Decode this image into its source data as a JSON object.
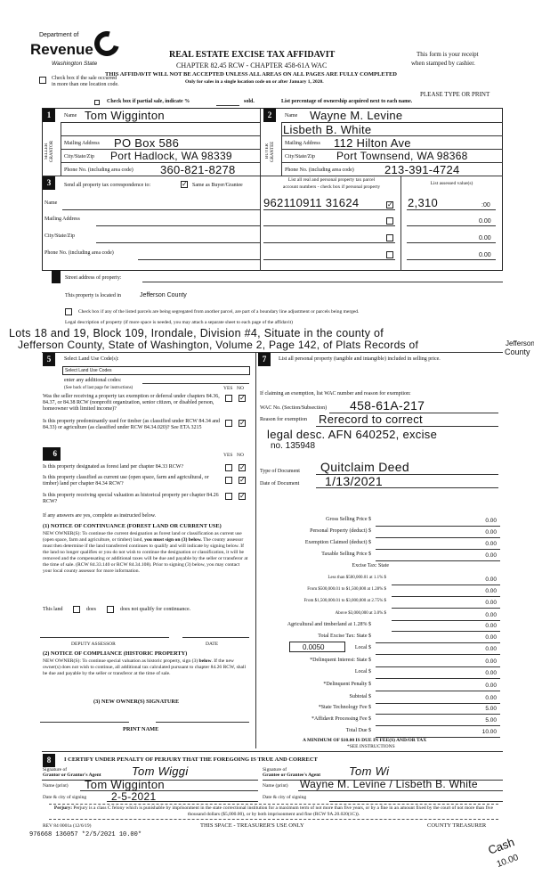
{
  "header": {
    "logo_top": "Department of",
    "logo_main": "Revenue",
    "logo_sub": "Washington State",
    "title": "REAL ESTATE EXCISE TAX AFFIDAVIT",
    "chapter": "CHAPTER 82.45 RCW - CHAPTER 458-61A WAC",
    "warning": "THIS AFFIDAVIT WILL NOT BE ACCEPTED UNLESS ALL AREAS ON ALL PAGES ARE FULLY COMPLETED",
    "only_for": "Only for sales in a single location code on or after January 1, 2020.",
    "receipt1": "This form is your receipt",
    "receipt2": "when stamped by cashier.",
    "multi_loc1": "Check box if the sale occurred",
    "multi_loc2": "in more than one location code.",
    "please_type": "PLEASE TYPE OR PRINT",
    "partial": "Check box if partial sale, indicate %",
    "partial_sold": "sold.",
    "list_pct": "List percentage of ownership acquired next to each name."
  },
  "seller": {
    "num": "1",
    "side": "SELLER GRANTOR",
    "name_label": "Name",
    "name": "Tom Wigginton",
    "mail_label": "Mailing Address",
    "mail": "PO Box 586",
    "city_label": "City/State/Zip",
    "city": "Port Hadlock, WA 98339",
    "phone_label": "Phone No. (including area code)",
    "phone": "360-821-8278"
  },
  "buyer": {
    "num": "2",
    "side": "BUYER GRANTEE",
    "name_label": "Name",
    "name": "Wayne M. Levine",
    "name2": "Lisbeth B. White",
    "mail_label": "Mailing Address",
    "mail": "112 Hilton Ave",
    "city_label": "City/State/Zip",
    "city": "Port Townsend, WA 98368",
    "phone_label": "Phone No. (including area code)",
    "phone": "213-391-4724"
  },
  "sec3": {
    "num": "3",
    "send": "Send all property tax correspondence to:",
    "same": "Same as Buyer/Grantee",
    "same_checked": true,
    "name": "Name",
    "mail": "Mailing Address",
    "city": "City/State/Zip",
    "phone": "Phone No. (including area code)",
    "parcel_hdr1": "List all real and personal property tax parcel",
    "parcel_hdr2": "account numbers - check box if personal property",
    "assessed_hdr": "List assessed value(s)",
    "parcels": [
      {
        "num": "962110911 31624",
        "checked": true,
        "value": "2,310",
        "cents": ":00"
      },
      {
        "num": "",
        "checked": false,
        "value": "0.00"
      },
      {
        "num": "",
        "checked": false,
        "value": "0.00"
      },
      {
        "num": "",
        "checked": false,
        "value": "0.00"
      }
    ]
  },
  "sec4": {
    "street": "Street address of property:",
    "located": "This property is located in",
    "county": "Jefferson County",
    "segregate": "Check box if any of the listed parcels are being segregated from another parcel, are part of a boundary line adjustment or parcels being merged.",
    "legal_label": "Legal description of property (if more space is needed, you may attach a separate sheet to each page of the affidavit)",
    "legal1": "Lots 18 and 19, Block 109, Irondale, Division #4, Situate in the county of",
    "legal2": "Jefferson County, State of Washington, Volume 2, Page 142, of Plats Records of",
    "legal3a": "Jefferson",
    "legal3b": "County"
  },
  "sec5": {
    "num": "5",
    "label": "Select Land Use Code(s):",
    "select": "Select Land Use Codes",
    "additional": "enter any additional codes:",
    "see_back": "(See back of last page for instructions)",
    "yes": "YES",
    "no": "NO",
    "q1": "Was the seller receiving a property tax exemption or deferral under chapters 84.36, 84.37, or 84.38 RCW (nonprofit organization, senior citizen, or disabled person, homeowner with limited income)?",
    "q2": "Is this property predominantly used for timber (as classified under RCW 84.34 and 84.33) or agriculture (as classified under RCW 84.34.020)? See ETA 3215"
  },
  "sec6": {
    "num": "6",
    "q3": "Is this property designated as forest land per chapter 84.33 RCW?",
    "q4": "Is this property classified as current use (open space, farm and agricultural, or timber) land per chapter 84.34 RCW?",
    "q5": "Is this property receiving special valuation as historical property per chapter 84.26 RCW?",
    "if_yes": "If any answers are yes, complete as instructed below.",
    "n1_title": "(1) NOTICE OF CONTINUANCE (FOREST LAND OR CURRENT USE)",
    "n1_a": "NEW OWNER(S): To continue the current designation as forest land or classification as current use (open space, farm and agriculture, or timber) land, ",
    "n1_bold": "you must sign on (3) below.",
    "n1_b": " The county assessor must then determine if the land transferred continues to qualify and will indicate by signing below. If the land no longer qualifies or you do not wish to continue the designation or classification, it will be removed and the compensating or additional taxes will be due and payable by the seller or transferor at the time of sale. (RCW 84.33.140 or RCW 84.34.108). Prior to signing (3) below, you may contact your local county assessor for more information.",
    "this_land": "This land",
    "does": "does",
    "does_not": "does not qualify for continuance.",
    "deputy": "DEPUTY ASSESSOR",
    "date": "DATE",
    "n2_title": "(2) NOTICE OF COMPLIANCE (HISTORIC PROPERTY)",
    "n2_a": "NEW OWNER(S): To continue special valuation as historic property, sign (3) ",
    "n2_bold": "below",
    "n2_b": ". If the new owner(s) does not wish to continue, all additional tax calculated pursuant to chapter 84.26 RCW, shall be due and payable by the seller or transferor at the time of sale.",
    "n3": "(3) NEW OWNER(S) SIGNATURE",
    "print_name": "PRINT NAME"
  },
  "sec7": {
    "num": "7",
    "label": "List all personal property (tangible and intangible) included in selling price.",
    "claiming": "If claiming an exemption, list WAC number and reason for exemption:",
    "wac_label": "WAC No. (Section/Subsection)",
    "wac": "458-61A-217",
    "reason_label": "Reason for exemption",
    "reason1": "Rerecord to correct",
    "reason2": "legal desc. AFN 640252, excise",
    "reason3": "no. 135948",
    "type_label": "Type of Document",
    "type": "Quitclaim Deed",
    "date_label": "Date of Document",
    "date": "1/13/2021"
  },
  "fees": {
    "rows": [
      {
        "label": "Gross Selling Price $",
        "value": "0.00"
      },
      {
        "label": "Personal Property (deduct) $",
        "value": "0.00"
      },
      {
        "label": "Exemption Claimed (deduct) $",
        "value": "0.00"
      },
      {
        "label": "Taxable Selling Price $",
        "value": "0.00"
      },
      {
        "label": "Excise Tax: State",
        "value": ""
      },
      {
        "label": "Less than $500,000.01 at 1.1% $",
        "value": "0.00"
      },
      {
        "label": "From $500,000.01 to $1,500,000 at 1.28% $",
        "value": "0.00"
      },
      {
        "label": "From $1,500,000.01 to $3,000,000 at 2.75% $",
        "value": "0.00"
      },
      {
        "label": "Above $3,000,000 at 3.0% $",
        "value": "0.00"
      },
      {
        "label": "Agricultural and timberland at 1.28% $",
        "value": "0.00"
      },
      {
        "label": "Total Excise Tax: State $",
        "value": "0.00"
      },
      {
        "label": "Local $",
        "value": "0.00"
      },
      {
        "label": "*Delinquent Interest: State $",
        "value": "0.00"
      },
      {
        "label": "Local $",
        "value": "0.00"
      },
      {
        "label": "*Delinquent Penalty $",
        "value": "0.00"
      },
      {
        "label": "Subtotal $",
        "value": "0.00"
      },
      {
        "label": "*State Technology Fee $",
        "value": "5.00"
      },
      {
        "label": "*Affidavit Processing Fee $",
        "value": "5.00"
      },
      {
        "label": "Total Due $",
        "value": "10.00"
      }
    ],
    "local_rate": "0.0050",
    "minimum": "A MINIMUM OF $10.00 IS DUE IN FEE(S) AND/OR TAX",
    "see": "*SEE INSTRUCTIONS"
  },
  "sec8": {
    "num": "8",
    "certify": "I CERTIFY UNDER PENALTY OF PERJURY THAT THE FOREGOING IS TRUE AND CORRECT",
    "sig_g1": "Signature of",
    "sig_g2": "Grantor or Grantor's Agent",
    "sig_grantor": "Tom Wiggi",
    "sig_e1": "Signature of",
    "sig_e2": "Grantee or Grantee's Agent",
    "sig_grantee": "Tom Wi",
    "name_label": "Name (print)",
    "grantor_name": "Tom Wigginton",
    "grantee_name": "Wayne M. Levine / Lisbeth B. White",
    "date_label": "Date & city of signing",
    "grantor_date": "2-5-2021",
    "perjury_bold": "Perjury:",
    "perjury": " Perjury is a class C felony which is punishable by imprisonment in the state correctional institution for a maximum term of not more than five years, or by a fine in an amount fixed by the court of not more than five thousand dollars ($5,000.00), or by both imprisonment and fine (RCW 9A.20.020(1C))."
  },
  "footer": {
    "rev": "REV 84 0001a (12/6/19)",
    "treasurer_use": "THIS SPACE - TREASURER'S USE ONLY",
    "county": "COUNTY TREASURER",
    "receipt": "976668 136057 *2/5/2021 10.00*",
    "cash": "Cash",
    "cash_amt": "10.00"
  }
}
